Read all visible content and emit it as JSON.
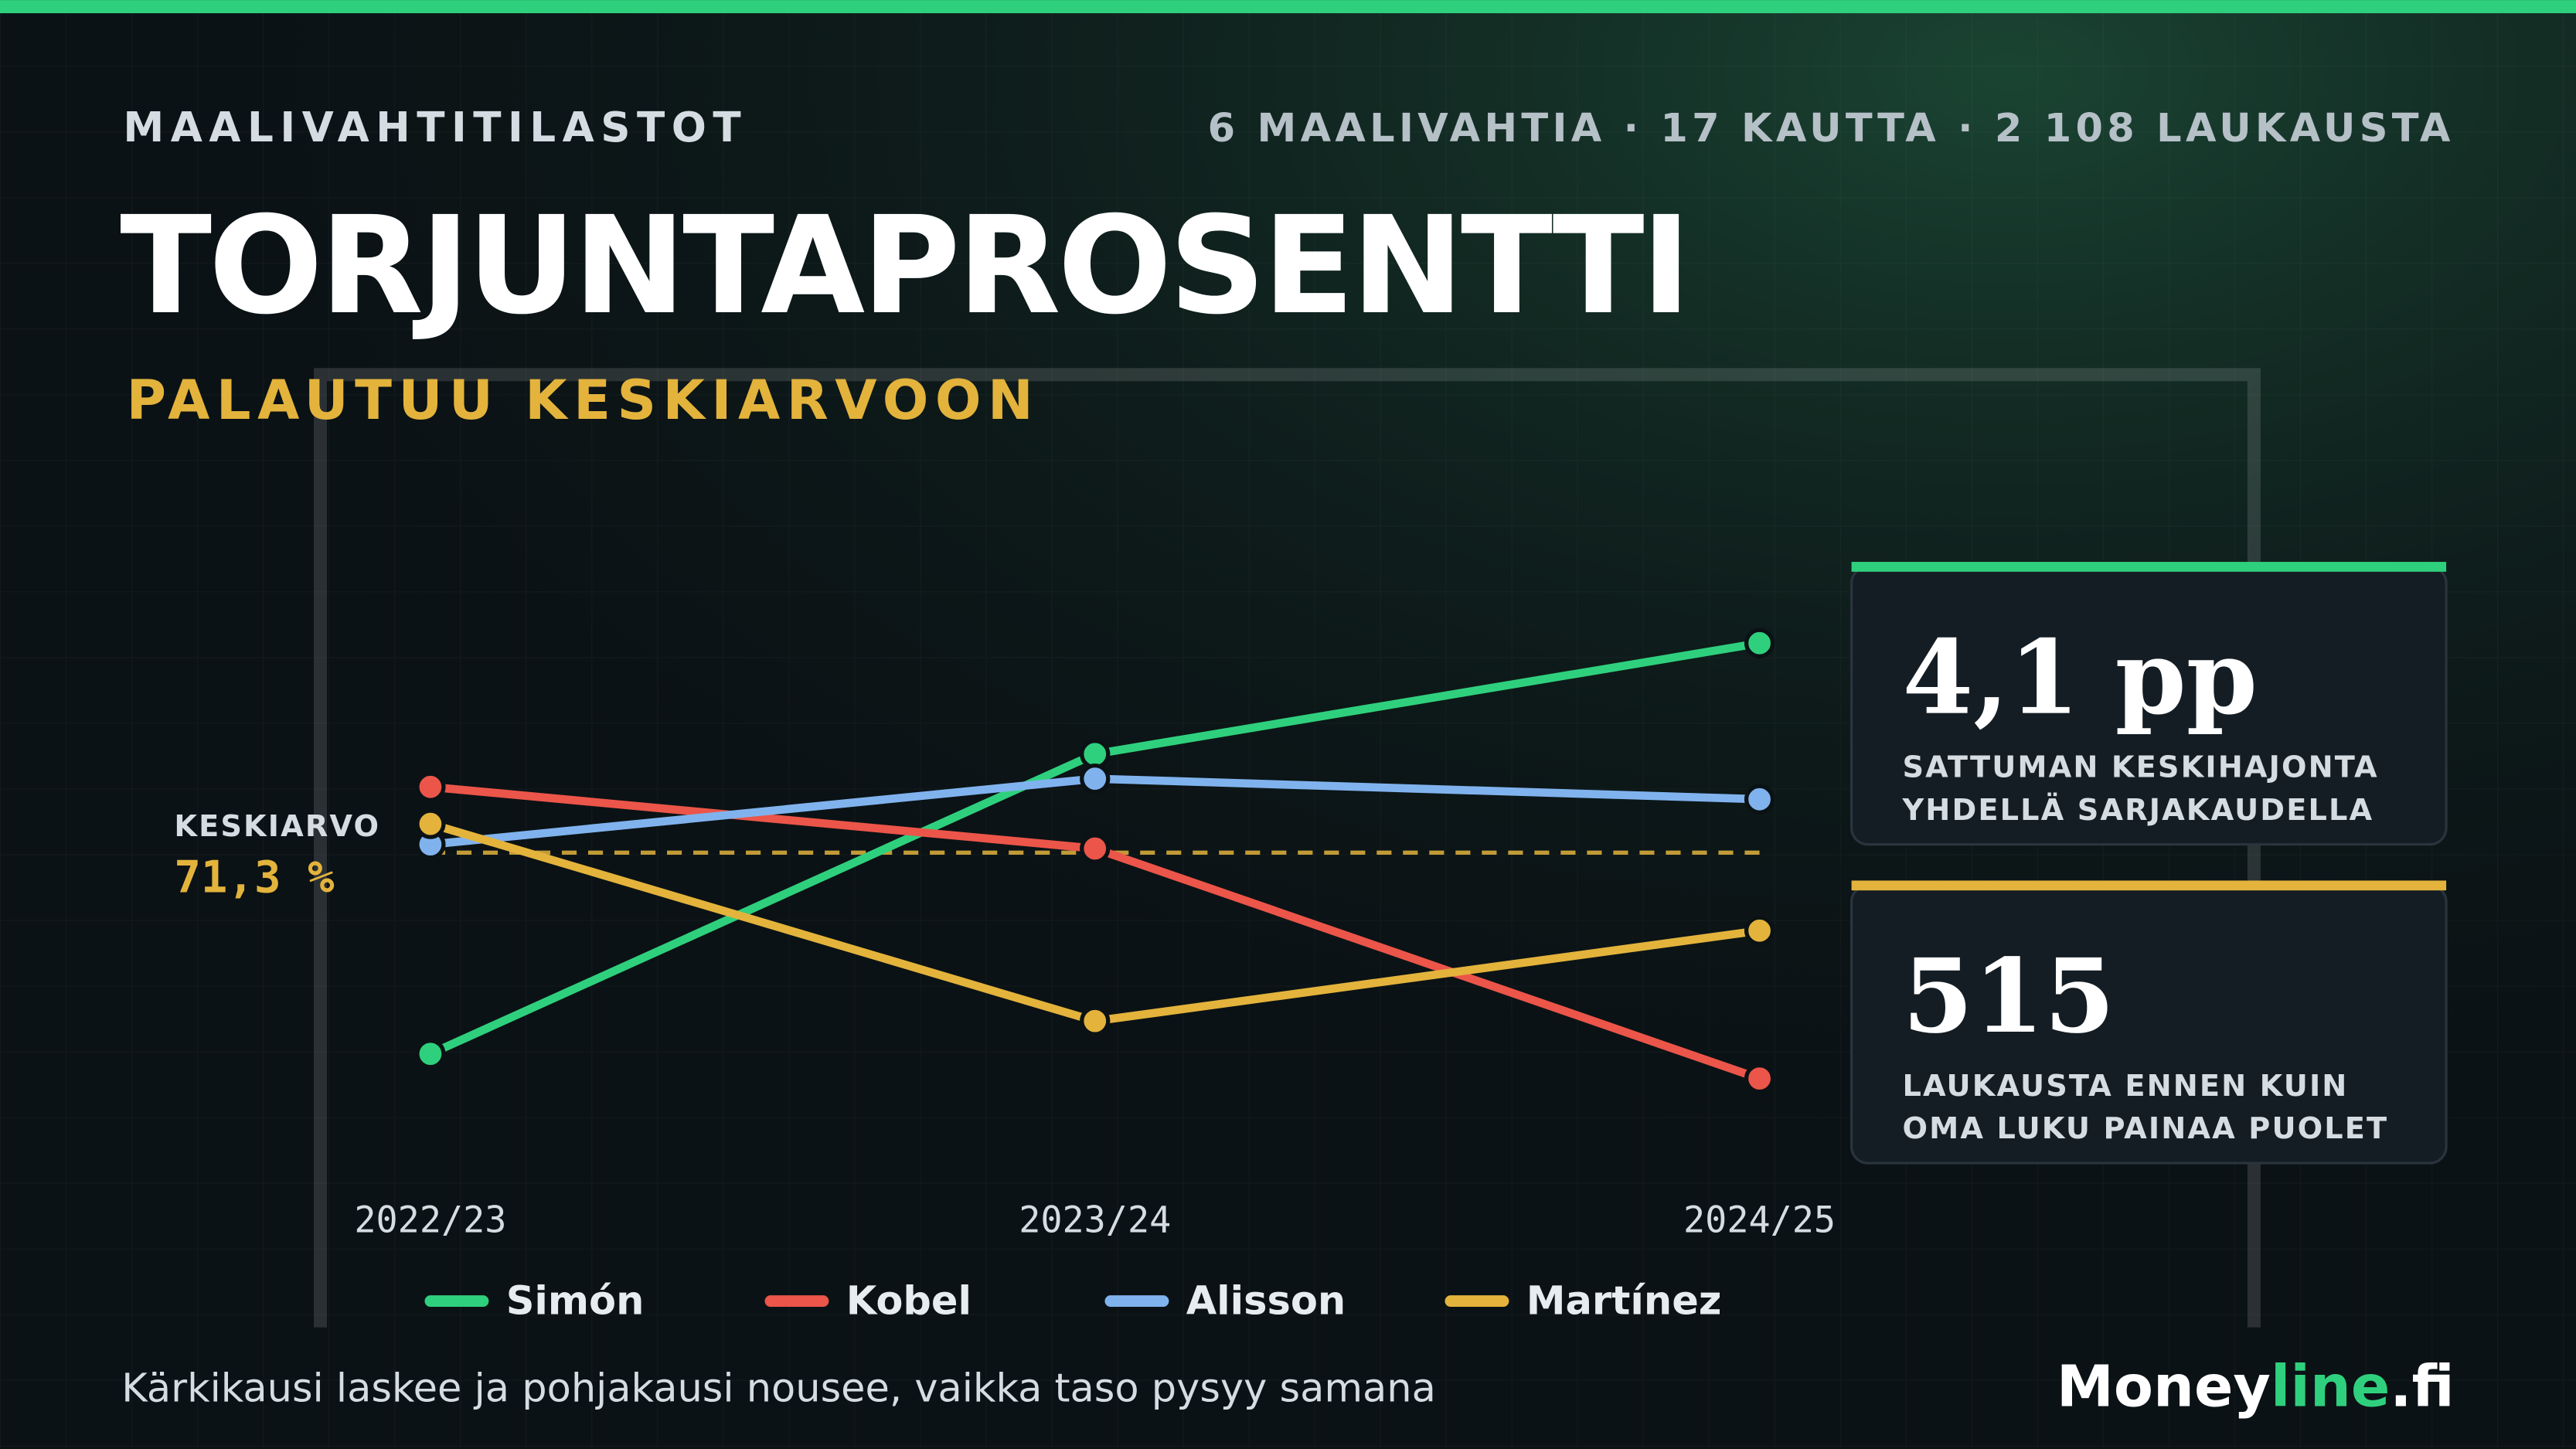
{
  "header": {
    "kicker": "MAALIVAHTITILASTOT",
    "meta": "6 MAALIVAHTIA · 17 KAUTTA · 2 108 LAUKAUSTA",
    "title": "TORJUNTAPROSENTTI",
    "subtitle": "PALAUTUU KESKIARVOON"
  },
  "chart_data": {
    "type": "line",
    "categories": [
      "2022/23",
      "2023/24",
      "2024/25"
    ],
    "series": [
      {
        "name": "Simón",
        "color": "#2fd07d",
        "values": [
          66.4,
          73.7,
          76.4
        ]
      },
      {
        "name": "Kobel",
        "color": "#ec5549",
        "values": [
          72.9,
          71.4,
          65.8
        ]
      },
      {
        "name": "Alisson",
        "color": "#80b3ee",
        "values": [
          71.5,
          73.1,
          72.6
        ]
      },
      {
        "name": "Martínez",
        "color": "#e3b33c",
        "values": [
          72.0,
          67.2,
          69.4
        ]
      }
    ],
    "ylim": [
      64,
      78
    ],
    "mean": {
      "value": 71.3,
      "label": "71,3 %"
    },
    "mean_title": "KESKIARVO",
    "mean_color": "#e3b33c"
  },
  "stats": [
    {
      "value": "4,1 pp",
      "lines": [
        "SATTUMAN KESKIHAJONTA",
        "YHDELLÄ SARJAKAUDELLA"
      ],
      "color": "#2fd07d"
    },
    {
      "value": "515",
      "lines": [
        "LAUKAUSTA ENNEN KUIN",
        "OMA LUKU PAINAA PUOLET"
      ],
      "color": "#e3b33c"
    }
  ],
  "footer": {
    "note": "Kärkikausi laskee ja pohjakausi nousee, vaikka taso pysyy samana",
    "brand_main": "Money",
    "brand_accent": "line",
    "brand_tld": ".fi"
  }
}
